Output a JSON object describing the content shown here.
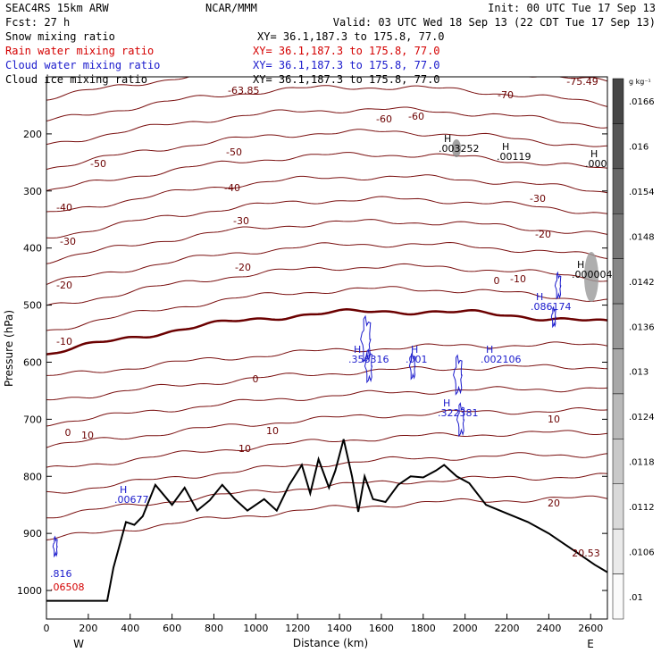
{
  "header": {
    "model": "SEAC4RS 15km ARW",
    "org": "NCAR/MMM",
    "init": "Init: 00 UTC Tue 17 Sep 13",
    "fcst": "Fcst:    27 h",
    "valid": "Valid: 03 UTC Wed 18 Sep 13 (22 CDT Tue 17 Sep 13)",
    "fields": [
      {
        "label": "Snow mixing ratio",
        "xy": "XY=   36.1,187.3 to 175.8, 77.0",
        "color": "#000000"
      },
      {
        "label": "Rain water mixing ratio",
        "xy": "XY=  36.1,187.3 to 175.8, 77.0",
        "color": "#d40000"
      },
      {
        "label": "Cloud water mixing ratio",
        "xy": "XY=  36.1,187.3 to 175.8, 77.0",
        "color": "#1a1acc"
      },
      {
        "label": "Cloud ice mixing ratio",
        "xy": "XY=  36.1,187.3 to 175.8, 77.0",
        "color": "#000000"
      }
    ]
  },
  "chart_data": {
    "type": "cross-section",
    "xlabel": "Distance (km)",
    "ylabel": "Pressure (hPa)",
    "xlim": [
      0,
      2680
    ],
    "ylim": [
      100,
      1050
    ],
    "xticks": [
      0,
      200,
      400,
      600,
      800,
      1000,
      1200,
      1400,
      1600,
      1800,
      2000,
      2200,
      2400,
      2600
    ],
    "yticks": [
      200,
      300,
      400,
      500,
      600,
      700,
      800,
      900,
      1000
    ],
    "x_end_labels": {
      "left": "W",
      "right": "E"
    },
    "colorbar": {
      "unit": "g kg⁻¹",
      "ticks": [
        ".01",
        ".0106",
        ".0112",
        ".0118",
        ".0124",
        ".013",
        ".0136",
        ".0142",
        ".0148",
        ".0154",
        ".016",
        ".0166"
      ]
    },
    "temperature_contour_labels": [
      "-75.49",
      "-70",
      "-60",
      "-60",
      "-50",
      "-50",
      "-40",
      "-40",
      "-30",
      "-30",
      "-30",
      "-20",
      "-20",
      "-20",
      "-10",
      "-10",
      "0",
      "0",
      "0",
      "10",
      "10",
      "10",
      "10",
      "20",
      "20.53"
    ],
    "extrema_labels": [
      {
        "text": "H",
        "value": ".003252",
        "color": "#000000"
      },
      {
        "text": "H",
        "value": ".00119",
        "color": "#000000"
      },
      {
        "text": "H",
        "value": ".000",
        "color": "#000000"
      },
      {
        "text": "H",
        "value": ".000004",
        "color": "#000000"
      },
      {
        "text": "H",
        "value": ".086174",
        "color": "#1a1acc"
      },
      {
        "text": "H",
        "value": ".356316",
        "color": "#1a1acc"
      },
      {
        "text": "H",
        "value": ".001",
        "color": "#1a1acc"
      },
      {
        "text": "H",
        "value": ".002106",
        "color": "#1a1acc"
      },
      {
        "text": "H",
        "value": ".322381",
        "color": "#1a1acc"
      },
      {
        "text": "H",
        "value": ".00677",
        "color": "#1a1acc"
      },
      {
        "text": "",
        "value": ".816",
        "color": "#1a1acc"
      },
      {
        "text": "",
        "value": ".06508",
        "color": "#d40000"
      },
      {
        "text": "",
        "value": "-63.85",
        "color": "#6b0000"
      }
    ],
    "terrain_pressure": [
      [
        0,
        1018
      ],
      [
        290,
        1018
      ],
      [
        320,
        960
      ],
      [
        380,
        880
      ],
      [
        420,
        885
      ],
      [
        460,
        870
      ],
      [
        520,
        815
      ],
      [
        600,
        850
      ],
      [
        660,
        820
      ],
      [
        720,
        860
      ],
      [
        780,
        842
      ],
      [
        840,
        815
      ],
      [
        900,
        840
      ],
      [
        960,
        860
      ],
      [
        1040,
        840
      ],
      [
        1100,
        860
      ],
      [
        1160,
        815
      ],
      [
        1220,
        780
      ],
      [
        1260,
        830
      ],
      [
        1300,
        770
      ],
      [
        1350,
        820
      ],
      [
        1380,
        790
      ],
      [
        1420,
        735
      ],
      [
        1460,
        800
      ],
      [
        1490,
        862
      ],
      [
        1520,
        800
      ],
      [
        1560,
        840
      ],
      [
        1620,
        845
      ],
      [
        1680,
        815
      ],
      [
        1740,
        800
      ],
      [
        1800,
        802
      ],
      [
        1860,
        790
      ],
      [
        1900,
        780
      ],
      [
        1960,
        800
      ],
      [
        2020,
        812
      ],
      [
        2100,
        850
      ],
      [
        2200,
        865
      ],
      [
        2300,
        880
      ],
      [
        2400,
        900
      ],
      [
        2480,
        920
      ],
      [
        2560,
        940
      ],
      [
        2620,
        955
      ],
      [
        2680,
        968
      ]
    ]
  }
}
